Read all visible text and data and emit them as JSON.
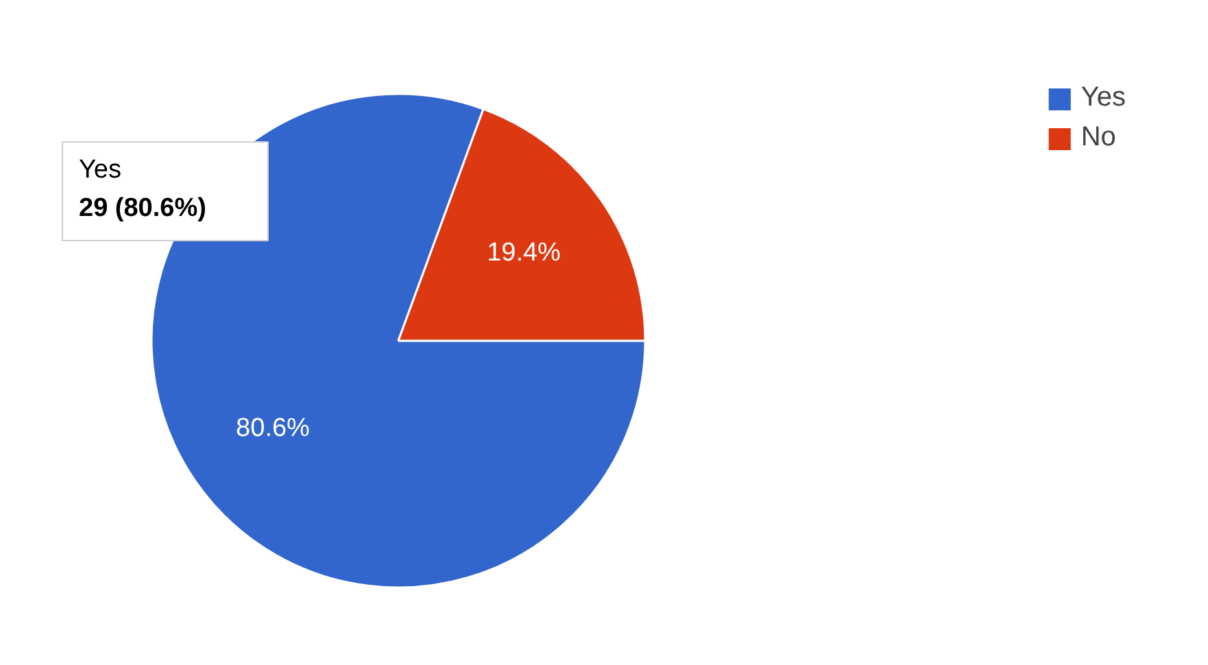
{
  "chart_data": {
    "type": "pie",
    "categories": [
      "Yes",
      "No"
    ],
    "values": [
      80.6,
      19.4
    ],
    "colors": [
      "#3366cc",
      "#dc3912"
    ],
    "value_labels": [
      "80.6%",
      "19.4%"
    ],
    "legend": "top right",
    "annotations": [
      "Yes\n29 (80.6%)"
    ]
  }
}
